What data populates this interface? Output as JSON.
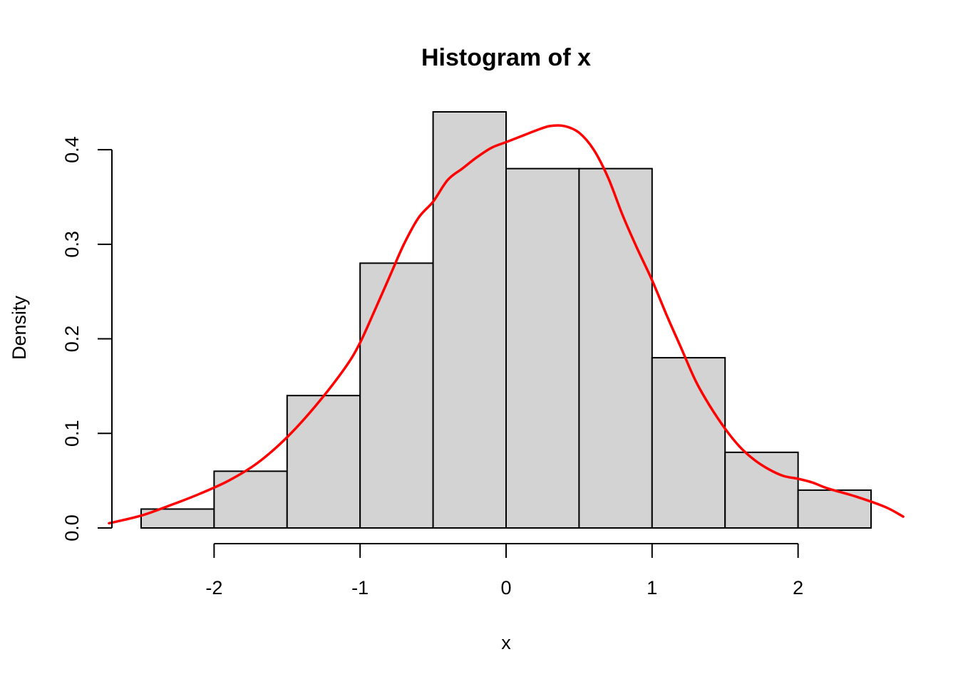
{
  "chart_data": {
    "type": "bar",
    "title": "Histogram of x",
    "xlabel": "x",
    "ylabel": "Density",
    "xlim": [
      -2.7,
      2.7
    ],
    "ylim": [
      0,
      0.44
    ],
    "x_ticks": [
      -2,
      -1,
      0,
      1,
      2
    ],
    "x_tick_labels": [
      "-2",
      "-1",
      "0",
      "1",
      "2"
    ],
    "y_ticks": [
      0,
      0.1,
      0.2,
      0.3,
      0.4
    ],
    "y_tick_labels": [
      "0.0",
      "0.1",
      "0.2",
      "0.3",
      "0.4"
    ],
    "bin_edges": [
      -2.5,
      -2.0,
      -1.5,
      -1.0,
      -0.5,
      0.0,
      0.5,
      1.0,
      1.5,
      2.0,
      2.5
    ],
    "values": [
      0.02,
      0.06,
      0.14,
      0.28,
      0.44,
      0.38,
      0.38,
      0.18,
      0.08,
      0.04
    ],
    "bar_color": "#d3d3d3",
    "density_curve": {
      "color": "#ff0000",
      "x": [
        -2.72,
        -2.5,
        -2.3,
        -2.1,
        -1.9,
        -1.7,
        -1.5,
        -1.3,
        -1.1,
        -1.0,
        -0.9,
        -0.8,
        -0.7,
        -0.6,
        -0.5,
        -0.4,
        -0.3,
        -0.2,
        -0.1,
        0.0,
        0.1,
        0.2,
        0.3,
        0.4,
        0.5,
        0.6,
        0.7,
        0.8,
        0.9,
        1.0,
        1.1,
        1.2,
        1.3,
        1.4,
        1.5,
        1.6,
        1.7,
        1.8,
        1.9,
        2.0,
        2.1,
        2.2,
        2.4,
        2.6,
        2.72
      ],
      "y": [
        0.005,
        0.013,
        0.024,
        0.036,
        0.05,
        0.069,
        0.096,
        0.13,
        0.17,
        0.196,
        0.23,
        0.265,
        0.3,
        0.328,
        0.345,
        0.368,
        0.38,
        0.392,
        0.402,
        0.408,
        0.414,
        0.42,
        0.425,
        0.425,
        0.418,
        0.4,
        0.37,
        0.33,
        0.295,
        0.262,
        0.225,
        0.19,
        0.155,
        0.128,
        0.105,
        0.086,
        0.072,
        0.062,
        0.055,
        0.052,
        0.048,
        0.042,
        0.033,
        0.022,
        0.012
      ]
    }
  }
}
